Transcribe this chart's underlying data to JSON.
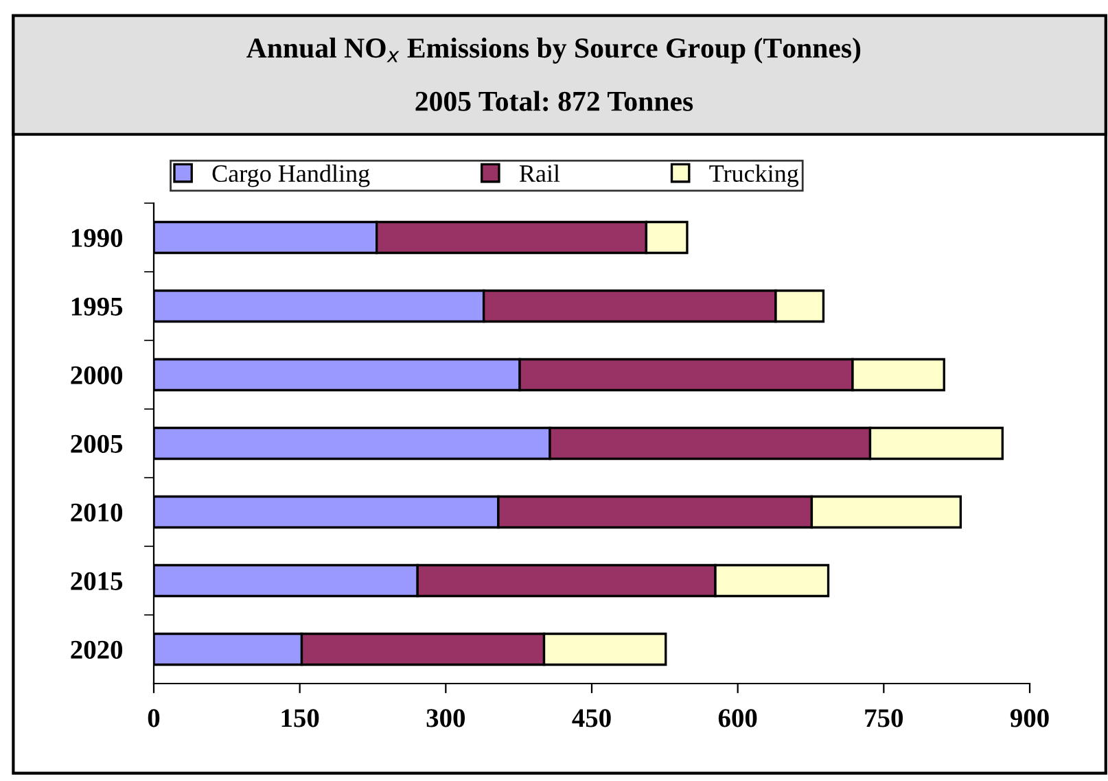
{
  "chart_data": {
    "type": "bar",
    "orientation": "horizontal",
    "stacked": true,
    "title": "Annual NO$_{x}$ Emissions by Source Group (Tonnes)",
    "subtitle": "2005 Total: 872 Tonnes",
    "categories": [
      "1990",
      "1995",
      "2000",
      "2005",
      "2010",
      "2015",
      "2020"
    ],
    "series": [
      {
        "name": "Cargo Handling",
        "color": "#9999ff",
        "values": [
          229,
          339,
          376,
          407,
          354,
          271,
          152
        ]
      },
      {
        "name": "Rail",
        "color": "#993366",
        "values": [
          277,
          300,
          342,
          329,
          322,
          306,
          249
        ]
      },
      {
        "name": "Trucking",
        "color": "#ffffcc",
        "values": [
          42,
          49,
          94,
          136,
          153,
          116,
          125
        ]
      }
    ],
    "xlim": [
      0,
      900
    ],
    "xticks": [
      0,
      150,
      300,
      450,
      600,
      750,
      900
    ],
    "grid": false,
    "legend": "top"
  }
}
